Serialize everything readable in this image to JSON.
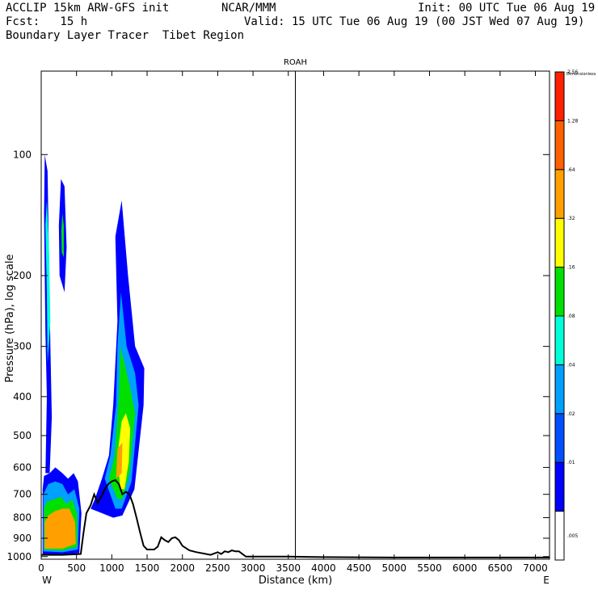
{
  "header": {
    "line1_left": "ACCLIP 15km ARW-GFS init",
    "line1_mid": "NCAR/MMM",
    "line1_right": "Init: 00 UTC Tue 06 Aug 19",
    "line2_left": "Fcst:   15 h",
    "line2_right": "Valid: 15 UTC Tue 06 Aug 19 (00 JST Wed 07 Aug 19)",
    "line3_left": "Boundary Layer Tracer  Tibet Region"
  },
  "chart_data": {
    "type": "heatmap",
    "title": "ROAH",
    "xlabel": "Distance (km)",
    "ylabel": "Pressure (hPa), log scale",
    "x_left_label": "W",
    "x_right_label": "E",
    "xlim": [
      0,
      7200
    ],
    "ylim": [
      1015,
      62
    ],
    "y_scale": "log",
    "xticks": [
      0,
      500,
      1000,
      1500,
      2000,
      2500,
      3000,
      3500,
      4000,
      4500,
      5000,
      5500,
      6000,
      6500,
      7000
    ],
    "yticks": [
      100,
      200,
      300,
      400,
      500,
      600,
      700,
      800,
      900,
      1000
    ],
    "station_line_x": 3600,
    "colorbar": {
      "unit_label": "Dimensionless",
      "labels": [
        ".005",
        ".01",
        ".02",
        ".04",
        ".08",
        ".16",
        ".32",
        ".64",
        "1.28",
        "2.56"
      ],
      "colors": [
        "#ffffff",
        "#0000ff",
        "#0050ff",
        "#00a0ff",
        "#00ffd8",
        "#00e000",
        "#ffff00",
        "#ffa000",
        "#ff6000",
        "#ff2000"
      ]
    },
    "terrain": {
      "x": [
        0,
        300,
        560,
        600,
        640,
        700,
        750,
        800,
        850,
        900,
        950,
        1000,
        1050,
        1100,
        1150,
        1200,
        1250,
        1300,
        1350,
        1400,
        1450,
        1500,
        1600,
        1650,
        1700,
        1750,
        1800,
        1850,
        1900,
        1950,
        2000,
        2100,
        2200,
        2400,
        2500,
        2550,
        2600,
        2650,
        2700,
        2750,
        2800,
        2850,
        2900,
        3500,
        4000,
        5000,
        6000,
        7000,
        7200
      ],
      "p": [
        990,
        990,
        985,
        870,
        780,
        745,
        700,
        735,
        710,
        680,
        660,
        650,
        645,
        660,
        700,
        690,
        700,
        740,
        800,
        870,
        940,
        960,
        960,
        945,
        895,
        910,
        920,
        900,
        895,
        910,
        940,
        965,
        975,
        990,
        975,
        985,
        970,
        975,
        965,
        970,
        970,
        985,
        1000,
        1000,
        1003,
        1005,
        1005,
        1005,
        1005
      ]
    }
  }
}
